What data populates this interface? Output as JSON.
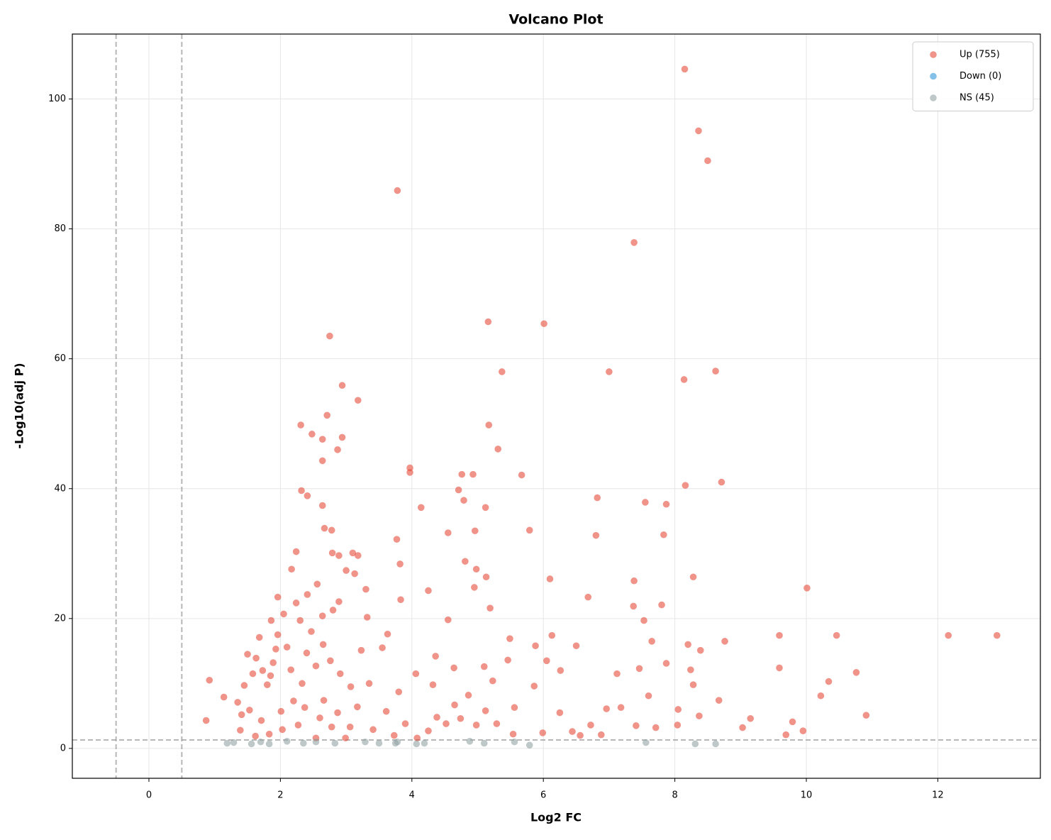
{
  "chart_data": {
    "type": "scatter",
    "title": "Volcano Plot",
    "x_label": "Log2 FC",
    "y_label": "-Log10(adj P)",
    "xlim": [
      -1.165,
      13.56
    ],
    "ylim": [
      -4.6,
      110
    ],
    "xticks": [
      0,
      2,
      4,
      6,
      8,
      10,
      12
    ],
    "yticks": [
      0,
      20,
      40,
      60,
      80,
      100
    ],
    "grid": true,
    "legend": "upper right",
    "thresholds": {
      "x": [
        -0.5,
        0.5
      ],
      "y": 1.3
    },
    "series": [
      {
        "name": "Up (755)",
        "color": "#e74c3c",
        "x": [
          8.15,
          8.36,
          8.5,
          3.78,
          7.38,
          2.75,
          5.16,
          6.01,
          7.0,
          8.62,
          5.37,
          8.14,
          2.94,
          3.18,
          2.71,
          2.31,
          5.17,
          2.48,
          2.94,
          2.64,
          2.87,
          5.31,
          2.64,
          3.97,
          3.97,
          4.76,
          4.93,
          5.67,
          8.71,
          8.16,
          2.32,
          4.71,
          6.82,
          2.41,
          4.79,
          7.55,
          7.87,
          4.14,
          5.12,
          2.64,
          5.79,
          2.78,
          2.67,
          4.55,
          4.96,
          6.8,
          7.83,
          3.77,
          2.24,
          2.79,
          3.1,
          3.18,
          2.89,
          3.82,
          4.81,
          2.17,
          4.98,
          3.0,
          3.13,
          5.13,
          6.1,
          8.28,
          7.38,
          10.01,
          3.3,
          4.25,
          4.95,
          6.68,
          3.83,
          2.89,
          5.19,
          7.37,
          7.8,
          3.32,
          4.55,
          7.53,
          12.16,
          12.9,
          10.46,
          9.59,
          6.13,
          7.65,
          8.76,
          8.2,
          8.39,
          5.88,
          6.5,
          9.59,
          10.76,
          10.34,
          10.22,
          10.91,
          9.95,
          9.69,
          9.79,
          9.15,
          9.03,
          8.67,
          8.37,
          8.05,
          8.24,
          7.87,
          8.28,
          7.46,
          7.12,
          6.96,
          7.18,
          7.41,
          7.71,
          8.04,
          7.6,
          6.72,
          6.88,
          6.25,
          5.99,
          6.44,
          6.56,
          5.86,
          6.26,
          6.05,
          5.49,
          5.46,
          5.56,
          5.29,
          5.54,
          5.1,
          5.23,
          4.86,
          4.65,
          4.38,
          4.25,
          4.08,
          4.64,
          4.36,
          4.06,
          3.8,
          3.63,
          3.55,
          3.23,
          3.35,
          3.17,
          3.41,
          2.99,
          2.78,
          2.6,
          2.37,
          2.2,
          2.01,
          2.03,
          1.83,
          1.62,
          1.39,
          1.41,
          1.35,
          1.14,
          0.92,
          0.87,
          1.45,
          1.58,
          1.5,
          1.68,
          1.86,
          1.96,
          2.05,
          2.24,
          2.41,
          2.56,
          2.3,
          2.47,
          2.64,
          2.8,
          2.65,
          2.4,
          2.1,
          1.89,
          1.73,
          1.8,
          1.63,
          1.96,
          2.16,
          2.33,
          2.54,
          2.76,
          2.91,
          3.07,
          2.66,
          2.87,
          3.06,
          2.54,
          2.27,
          1.71,
          1.53,
          1.85,
          1.93,
          3.61,
          3.9,
          3.73,
          4.32,
          4.52,
          4.74,
          4.98,
          5.12
        ],
        "values": [
          104.6,
          95.1,
          90.5,
          85.9,
          77.9,
          63.5,
          65.7,
          65.4,
          58.0,
          58.1,
          58.0,
          56.8,
          55.9,
          53.6,
          51.3,
          49.8,
          49.8,
          48.4,
          47.9,
          47.6,
          46.0,
          46.1,
          44.3,
          43.2,
          42.5,
          42.2,
          42.2,
          42.1,
          41.0,
          40.5,
          39.7,
          39.8,
          38.6,
          38.9,
          38.2,
          37.9,
          37.6,
          37.1,
          37.1,
          37.4,
          33.6,
          33.6,
          33.9,
          33.2,
          33.5,
          32.8,
          32.9,
          32.2,
          30.3,
          30.1,
          30.1,
          29.7,
          29.7,
          28.4,
          28.8,
          27.6,
          27.6,
          27.4,
          26.9,
          26.4,
          26.1,
          26.4,
          25.8,
          24.7,
          24.5,
          24.3,
          24.8,
          23.3,
          22.9,
          22.6,
          21.6,
          21.9,
          22.1,
          20.2,
          19.8,
          19.7,
          17.4,
          17.4,
          17.4,
          17.4,
          17.4,
          16.5,
          16.5,
          16.0,
          15.1,
          15.8,
          15.8,
          12.4,
          11.7,
          10.3,
          8.1,
          5.1,
          2.7,
          2.1,
          4.1,
          4.6,
          3.2,
          7.4,
          5.0,
          6.0,
          12.1,
          13.1,
          9.8,
          12.3,
          11.5,
          6.1,
          6.3,
          3.5,
          3.2,
          3.6,
          8.1,
          3.6,
          2.1,
          5.5,
          2.4,
          2.6,
          2.0,
          9.6,
          12.0,
          13.5,
          16.9,
          13.6,
          6.3,
          3.8,
          2.2,
          12.6,
          10.4,
          8.2,
          6.7,
          4.8,
          2.7,
          1.6,
          12.4,
          14.2,
          11.5,
          8.7,
          17.6,
          15.5,
          15.1,
          10.0,
          6.4,
          2.9,
          1.6,
          3.3,
          4.7,
          6.3,
          7.3,
          5.7,
          2.9,
          2.2,
          1.9,
          2.8,
          5.2,
          7.1,
          7.9,
          10.5,
          4.3,
          9.7,
          11.5,
          14.5,
          17.1,
          19.7,
          23.3,
          20.7,
          22.4,
          23.7,
          25.3,
          19.7,
          18.0,
          20.4,
          21.3,
          16.0,
          14.7,
          15.6,
          13.2,
          12.0,
          9.8,
          13.9,
          17.5,
          12.1,
          10.0,
          12.7,
          13.5,
          11.5,
          9.5,
          7.4,
          5.5,
          3.3,
          1.6,
          3.6,
          4.3,
          5.9,
          11.2,
          15.3,
          5.7,
          3.8,
          2.0,
          9.8,
          3.8,
          4.6,
          3.6,
          5.8
        ]
      },
      {
        "name": "Down (0)",
        "color": "#3498db",
        "x": [],
        "values": []
      },
      {
        "name": "NS (45)",
        "color": "#95a5a6",
        "x": [
          1.19,
          1.29,
          1.56,
          1.7,
          1.83,
          2.1,
          2.35,
          2.83,
          3.29,
          3.5,
          3.75,
          4.07,
          4.19,
          4.88,
          5.1,
          5.56,
          5.79,
          7.56,
          8.31,
          8.62,
          3.78,
          2.54
        ],
        "values": [
          0.8,
          0.9,
          0.7,
          1.0,
          0.7,
          1.1,
          0.8,
          0.8,
          1.0,
          0.8,
          0.8,
          0.7,
          0.8,
          1.1,
          0.8,
          1.0,
          0.5,
          0.9,
          0.7,
          0.7,
          1.0,
          1.0
        ]
      }
    ]
  }
}
